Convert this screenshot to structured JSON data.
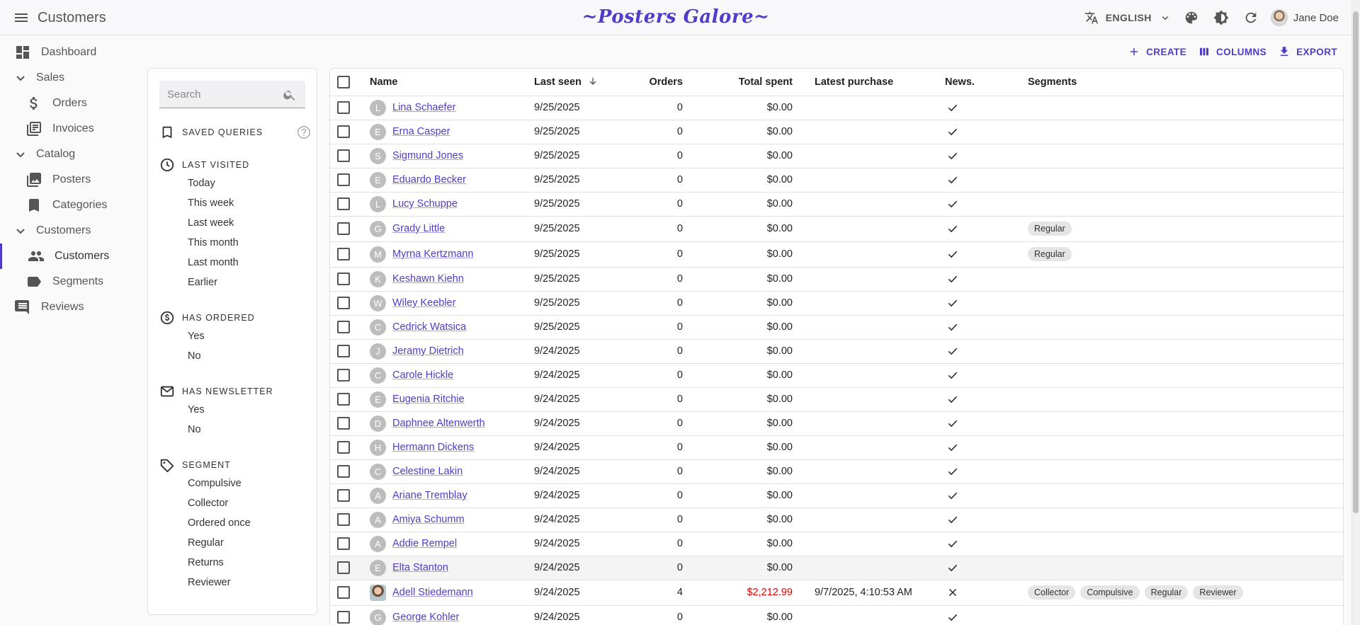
{
  "appbar": {
    "title": "Customers",
    "brand": "~Posters Galore~",
    "language": "ENGLISH",
    "user_name": "Jane Doe"
  },
  "sidebar": {
    "items": [
      {
        "label": "Dashboard",
        "icon": "dashboard-icon",
        "kind": "top"
      },
      {
        "label": "Sales",
        "icon": "chevron-down-icon",
        "kind": "group"
      },
      {
        "label": "Orders",
        "icon": "dollar-icon",
        "kind": "sub"
      },
      {
        "label": "Invoices",
        "icon": "invoice-icon",
        "kind": "sub"
      },
      {
        "label": "Catalog",
        "icon": "chevron-down-icon",
        "kind": "group"
      },
      {
        "label": "Posters",
        "icon": "collections-icon",
        "kind": "sub"
      },
      {
        "label": "Categories",
        "icon": "bookmark-icon",
        "kind": "sub"
      },
      {
        "label": "Customers",
        "icon": "chevron-down-icon",
        "kind": "group"
      },
      {
        "label": "Customers",
        "icon": "people-icon",
        "kind": "sub",
        "active": true
      },
      {
        "label": "Segments",
        "icon": "label-icon",
        "kind": "sub"
      },
      {
        "label": "Reviews",
        "icon": "comment-icon",
        "kind": "top"
      }
    ]
  },
  "filters": {
    "search_placeholder": "Search",
    "saved_queries": "SAVED QUERIES",
    "last_visited": {
      "title": "LAST VISITED",
      "items": [
        "Today",
        "This week",
        "Last week",
        "This month",
        "Last month",
        "Earlier"
      ]
    },
    "has_ordered": {
      "title": "HAS ORDERED",
      "items": [
        "Yes",
        "No"
      ]
    },
    "has_newsletter": {
      "title": "HAS NEWSLETTER",
      "items": [
        "Yes",
        "No"
      ]
    },
    "segment": {
      "title": "SEGMENT",
      "items": [
        "Compulsive",
        "Collector",
        "Ordered once",
        "Regular",
        "Returns",
        "Reviewer"
      ]
    }
  },
  "toolbar": {
    "create": "CREATE",
    "columns": "COLUMNS",
    "export": "EXPORT"
  },
  "table": {
    "headers": {
      "name": "Name",
      "last_seen": "Last seen",
      "orders": "Orders",
      "total_spent": "Total spent",
      "latest_purchase": "Latest purchase",
      "newsletter": "News.",
      "segments": "Segments"
    },
    "rows": [
      {
        "initial": "L",
        "name": "Lina Schaefer",
        "last_seen": "9/25/2025",
        "orders": "0",
        "total": "$0.00",
        "latest": "",
        "news": true,
        "segments": []
      },
      {
        "initial": "E",
        "name": "Erna Casper",
        "last_seen": "9/25/2025",
        "orders": "0",
        "total": "$0.00",
        "latest": "",
        "news": true,
        "segments": []
      },
      {
        "initial": "S",
        "name": "Sigmund Jones",
        "last_seen": "9/25/2025",
        "orders": "0",
        "total": "$0.00",
        "latest": "",
        "news": true,
        "segments": []
      },
      {
        "initial": "E",
        "name": "Eduardo Becker",
        "last_seen": "9/25/2025",
        "orders": "0",
        "total": "$0.00",
        "latest": "",
        "news": true,
        "segments": []
      },
      {
        "initial": "L",
        "name": "Lucy Schuppe",
        "last_seen": "9/25/2025",
        "orders": "0",
        "total": "$0.00",
        "latest": "",
        "news": true,
        "segments": []
      },
      {
        "initial": "G",
        "name": "Grady Little",
        "last_seen": "9/25/2025",
        "orders": "0",
        "total": "$0.00",
        "latest": "",
        "news": true,
        "segments": [
          "Regular"
        ]
      },
      {
        "initial": "M",
        "name": "Myrna Kertzmann",
        "last_seen": "9/25/2025",
        "orders": "0",
        "total": "$0.00",
        "latest": "",
        "news": true,
        "segments": [
          "Regular"
        ]
      },
      {
        "initial": "K",
        "name": "Keshawn Kiehn",
        "last_seen": "9/25/2025",
        "orders": "0",
        "total": "$0.00",
        "latest": "",
        "news": true,
        "segments": []
      },
      {
        "initial": "W",
        "name": "Wiley Keebler",
        "last_seen": "9/25/2025",
        "orders": "0",
        "total": "$0.00",
        "latest": "",
        "news": true,
        "segments": []
      },
      {
        "initial": "C",
        "name": "Cedrick Watsica",
        "last_seen": "9/25/2025",
        "orders": "0",
        "total": "$0.00",
        "latest": "",
        "news": true,
        "segments": []
      },
      {
        "initial": "J",
        "name": "Jeramy Dietrich",
        "last_seen": "9/24/2025",
        "orders": "0",
        "total": "$0.00",
        "latest": "",
        "news": true,
        "segments": []
      },
      {
        "initial": "C",
        "name": "Carole Hickle",
        "last_seen": "9/24/2025",
        "orders": "0",
        "total": "$0.00",
        "latest": "",
        "news": true,
        "segments": []
      },
      {
        "initial": "E",
        "name": "Eugenia Ritchie",
        "last_seen": "9/24/2025",
        "orders": "0",
        "total": "$0.00",
        "latest": "",
        "news": true,
        "segments": []
      },
      {
        "initial": "D",
        "name": "Daphnee Altenwerth",
        "last_seen": "9/24/2025",
        "orders": "0",
        "total": "$0.00",
        "latest": "",
        "news": true,
        "segments": []
      },
      {
        "initial": "H",
        "name": "Hermann Dickens",
        "last_seen": "9/24/2025",
        "orders": "0",
        "total": "$0.00",
        "latest": "",
        "news": true,
        "segments": []
      },
      {
        "initial": "C",
        "name": "Celestine Lakin",
        "last_seen": "9/24/2025",
        "orders": "0",
        "total": "$0.00",
        "latest": "",
        "news": true,
        "segments": []
      },
      {
        "initial": "A",
        "name": "Ariane Tremblay",
        "last_seen": "9/24/2025",
        "orders": "0",
        "total": "$0.00",
        "latest": "",
        "news": true,
        "segments": []
      },
      {
        "initial": "A",
        "name": "Amiya Schumm",
        "last_seen": "9/24/2025",
        "orders": "0",
        "total": "$0.00",
        "latest": "",
        "news": true,
        "segments": []
      },
      {
        "initial": "A",
        "name": "Addie Rempel",
        "last_seen": "9/24/2025",
        "orders": "0",
        "total": "$0.00",
        "latest": "",
        "news": true,
        "segments": []
      },
      {
        "initial": "E",
        "name": "Elta Stanton",
        "last_seen": "9/24/2025",
        "orders": "0",
        "total": "$0.00",
        "latest": "",
        "news": true,
        "segments": [],
        "highlight": true
      },
      {
        "initial": "",
        "photo": true,
        "name": "Adell Stiedemann",
        "last_seen": "9/24/2025",
        "orders": "4",
        "total": "$2,212.99",
        "total_red": true,
        "latest": "9/7/2025, 4:10:53 AM",
        "news": false,
        "segments": [
          "Collector",
          "Compulsive",
          "Regular",
          "Reviewer"
        ]
      },
      {
        "initial": "G",
        "name": "George Kohler",
        "last_seen": "9/24/2025",
        "orders": "0",
        "total": "$0.00",
        "latest": "",
        "news": true,
        "segments": []
      }
    ]
  },
  "colors": {
    "accent": "#4f3cc9",
    "negative_amount": "#e00000"
  }
}
